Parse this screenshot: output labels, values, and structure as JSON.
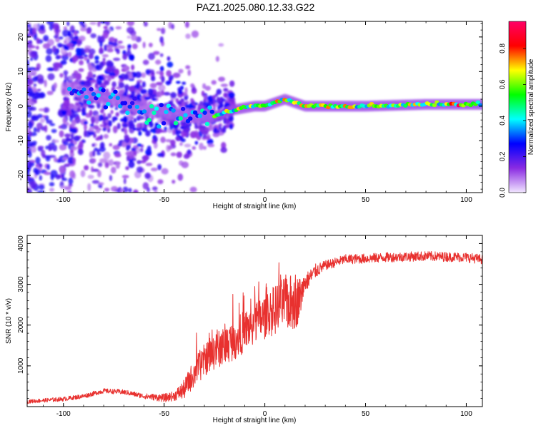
{
  "title": "PAZ1.2025.080.12.33.G22",
  "chart_data": [
    {
      "type": "heatmap",
      "xlabel": "Height of straight line (km)",
      "ylabel": "Frequency (Hz)",
      "xlim": [
        -118,
        108
      ],
      "ylim": [
        -25,
        24.5
      ],
      "x_ticks": [
        -100,
        -50,
        0,
        50,
        100
      ],
      "y_ticks": [
        -20,
        -10,
        0,
        10,
        20
      ],
      "colorbar": {
        "label": "Normalized spectral amplitude",
        "range": [
          0,
          0.95
        ],
        "ticks": [
          "0.0",
          "0.2",
          "0.4",
          "0.6",
          "0.8"
        ],
        "colormap": [
          "#f2e6ff",
          "#8a2be2",
          "#0000ff",
          "#00ffff",
          "#00ff00",
          "#ffff00",
          "#ff0000",
          "#ff0066"
        ]
      },
      "ridge": {
        "x": [
          -95,
          -85,
          -75,
          -65,
          -55,
          -45,
          -35,
          -25,
          -15,
          -5,
          0,
          10,
          20,
          50,
          80,
          108
        ],
        "y": [
          5,
          3,
          2,
          0,
          -1.5,
          -2,
          -3,
          -3,
          -1,
          0,
          0,
          2,
          0,
          0,
          0.5,
          0.5
        ]
      }
    },
    {
      "type": "line",
      "xlabel": "Height of straight line (km)",
      "ylabel": "SNR (10 * v/v)",
      "xlim": [
        -118,
        108
      ],
      "ylim": [
        0,
        4200
      ],
      "x_ticks": [
        -100,
        -50,
        0,
        50,
        100
      ],
      "y_ticks": [
        1000,
        2000,
        3000,
        4000
      ],
      "color": "#e8312f",
      "envelope": {
        "x": [
          -118,
          -100,
          -90,
          -80,
          -70,
          -60,
          -50,
          -45,
          -40,
          -35,
          -30,
          -25,
          -20,
          -15,
          -10,
          -5,
          0,
          5,
          10,
          15,
          18,
          20,
          25,
          30,
          40,
          50,
          60,
          80,
          100,
          108
        ],
        "y": [
          120,
          180,
          250,
          380,
          350,
          250,
          200,
          250,
          400,
          800,
          1100,
          1300,
          1450,
          1600,
          1800,
          2000,
          2150,
          2300,
          2500,
          2450,
          2700,
          3000,
          3300,
          3450,
          3600,
          3620,
          3650,
          3680,
          3650,
          3600
        ]
      },
      "noise": {
        "x": [
          -118,
          -60,
          -45,
          -35,
          -20,
          0,
          15,
          20,
          30,
          108
        ],
        "amplitude": [
          60,
          80,
          150,
          450,
          600,
          700,
          900,
          300,
          150,
          150
        ]
      }
    }
  ]
}
